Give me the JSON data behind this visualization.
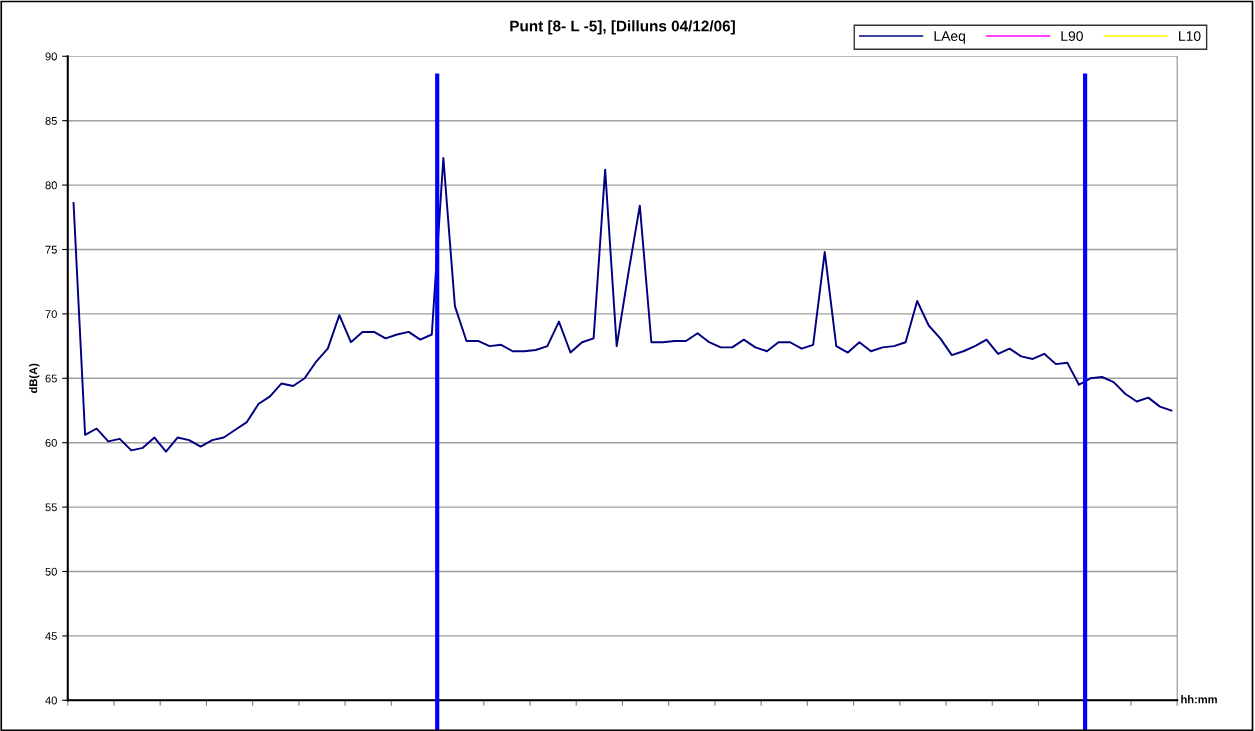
{
  "chart_data": {
    "type": "line",
    "title": "Punt [8- L -5], [Dilluns 04/12/06]",
    "xlabel": "hh:mm",
    "ylabel": "dB(A)",
    "categories": [
      null,
      null,
      null,
      null,
      null,
      null,
      null,
      null,
      null,
      null,
      null,
      null,
      null,
      null,
      null,
      null,
      null,
      null,
      null,
      null,
      null,
      null,
      null,
      null,
      null,
      null,
      null,
      null,
      null,
      null,
      null,
      null,
      null,
      null,
      null,
      null,
      null,
      null,
      null,
      null,
      null,
      null,
      null,
      null,
      null,
      null,
      null,
      null,
      null,
      null,
      null,
      null,
      null,
      null,
      null,
      null,
      null,
      null,
      null,
      null,
      null,
      null,
      null,
      null,
      null,
      null,
      null,
      null,
      null,
      null,
      null,
      null,
      null,
      null,
      null,
      null,
      null,
      null,
      null,
      null,
      null,
      null,
      null,
      null,
      null,
      null,
      null,
      null,
      null,
      null,
      null,
      null,
      null,
      null,
      null,
      null
    ],
    "series": [
      {
        "name": "LAeq",
        "color": "#000080",
        "values": [
          78.6,
          60.6,
          61.1,
          60.1,
          60.3,
          59.4,
          59.6,
          60.4,
          59.3,
          60.4,
          60.2,
          59.7,
          60.2,
          60.4,
          61.0,
          61.6,
          63.0,
          63.6,
          64.6,
          64.4,
          65.0,
          66.3,
          67.3,
          69.9,
          67.8,
          68.6,
          68.6,
          68.1,
          68.4,
          68.6,
          68.0,
          68.4,
          82.1,
          70.6,
          67.9,
          67.9,
          67.5,
          67.6,
          67.1,
          67.1,
          67.2,
          67.5,
          69.4,
          67.0,
          67.8,
          68.1,
          81.2,
          67.5,
          73.1,
          78.4,
          67.8,
          67.8,
          67.9,
          67.9,
          68.5,
          67.8,
          67.4,
          67.4,
          68.0,
          67.4,
          67.1,
          67.8,
          67.8,
          67.3,
          67.6,
          74.8,
          67.5,
          67.0,
          67.8,
          67.1,
          67.4,
          67.5,
          67.8,
          71.0,
          69.1,
          68.1,
          66.8,
          67.1,
          67.5,
          68.0,
          66.9,
          67.3,
          66.7,
          66.5,
          66.9,
          66.1,
          66.2,
          64.5,
          65.0,
          65.1,
          64.7,
          63.8,
          63.2,
          63.5,
          62.8,
          62.5
        ]
      },
      {
        "name": "L90",
        "color": "#ff00ff",
        "values": [
          null,
          null,
          null,
          null,
          null,
          null,
          null,
          null,
          null,
          null,
          null,
          null,
          null,
          null,
          null,
          null,
          null,
          null,
          null,
          null,
          null,
          null,
          null,
          null,
          null,
          null,
          null,
          null,
          null,
          null,
          null,
          null,
          null,
          null,
          null,
          null,
          null,
          null,
          null,
          null,
          null,
          null,
          null,
          null,
          null,
          null,
          null,
          null,
          null,
          null,
          null,
          null,
          null,
          null,
          null,
          null,
          null,
          null,
          null,
          null,
          null,
          null,
          null,
          null,
          null,
          null,
          null,
          null,
          null,
          null,
          null,
          null,
          null,
          null,
          null,
          null,
          null,
          null,
          null,
          null,
          null,
          null,
          null,
          null,
          null,
          null,
          null,
          null,
          null,
          null,
          null,
          null,
          null,
          null,
          null,
          null
        ]
      },
      {
        "name": "L10",
        "color": "#ffff00",
        "values": [
          null,
          null,
          null,
          null,
          null,
          null,
          null,
          null,
          null,
          null,
          null,
          null,
          null,
          null,
          null,
          null,
          null,
          null,
          null,
          null,
          null,
          null,
          null,
          null,
          null,
          null,
          null,
          null,
          null,
          null,
          null,
          null,
          null,
          null,
          null,
          null,
          null,
          null,
          null,
          null,
          null,
          null,
          null,
          null,
          null,
          null,
          null,
          null,
          null,
          null,
          null,
          null,
          null,
          null,
          null,
          null,
          null,
          null,
          null,
          null,
          null,
          null,
          null,
          null,
          null,
          null,
          null,
          null,
          null,
          null,
          null,
          null,
          null,
          null,
          null,
          null,
          null,
          null,
          null,
          null,
          null,
          null,
          null,
          null,
          null,
          null,
          null,
          null,
          null,
          null,
          null,
          null,
          null,
          null,
          null,
          null
        ]
      }
    ],
    "ylim": [
      40,
      90
    ],
    "yticks": [
      40,
      45,
      50,
      55,
      60,
      65,
      70,
      75,
      80,
      85,
      90
    ],
    "grid": "y",
    "legend": "top right",
    "line_style": "solid",
    "marker": "none"
  }
}
